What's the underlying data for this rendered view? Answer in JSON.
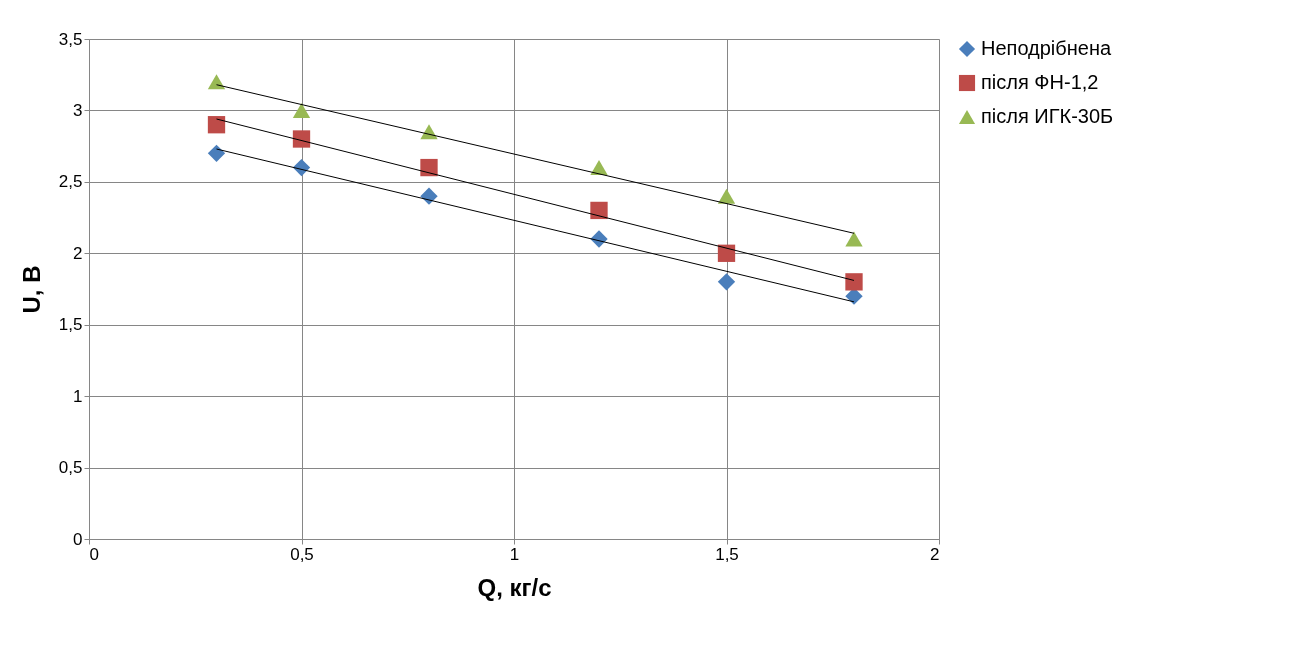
{
  "chart_data": {
    "type": "scatter",
    "xlabel": "Q, кг/с",
    "ylabel": "U, В",
    "xlim": [
      0,
      2
    ],
    "xticks": [
      0,
      {
        "value": 0.5,
        "label": "0,5"
      },
      1,
      {
        "value": 1.5,
        "label": "1,5"
      },
      2
    ],
    "ylim": [
      0,
      3.5
    ],
    "yticks": [
      0,
      {
        "value": 0.5,
        "label": "0,5"
      },
      1,
      {
        "value": 1.5,
        "label": "1,5"
      },
      2,
      {
        "value": 2.5,
        "label": "2,5"
      },
      3,
      {
        "value": 3.5,
        "label": "3,5"
      }
    ],
    "grid": true,
    "legend": "right",
    "series": [
      {
        "name": "Неподрібнена",
        "color": "#4a7ebb",
        "marker": "diamond",
        "x": [
          0.3,
          0.5,
          0.8,
          1.2,
          1.5,
          1.8
        ],
        "values": [
          2.7,
          2.6,
          2.4,
          2.1,
          1.8,
          1.7
        ]
      },
      {
        "name": "після ФН-1,2",
        "color": "#be4b48",
        "marker": "square",
        "x": [
          0.3,
          0.5,
          0.8,
          1.2,
          1.5,
          1.8
        ],
        "values": [
          2.9,
          2.8,
          2.6,
          2.3,
          2.0,
          1.8
        ]
      },
      {
        "name": "після ИГК-30Б",
        "color": "#98b954",
        "marker": "triangle",
        "x": [
          0.3,
          0.5,
          0.8,
          1.2,
          1.5,
          1.8
        ],
        "values": [
          3.2,
          3.0,
          2.85,
          2.6,
          2.4,
          2.1
        ]
      },
      {
        "type": "line",
        "color": "#000000",
        "x": [
          0.3,
          1.8
        ],
        "values": [
          2.73,
          1.66
        ]
      },
      {
        "type": "line",
        "color": "#000000",
        "x": [
          0.3,
          1.8
        ],
        "values": [
          2.94,
          1.81
        ]
      },
      {
        "type": "line",
        "color": "#000000",
        "x": [
          0.3,
          1.8
        ],
        "values": [
          3.18,
          2.14
        ]
      }
    ]
  }
}
